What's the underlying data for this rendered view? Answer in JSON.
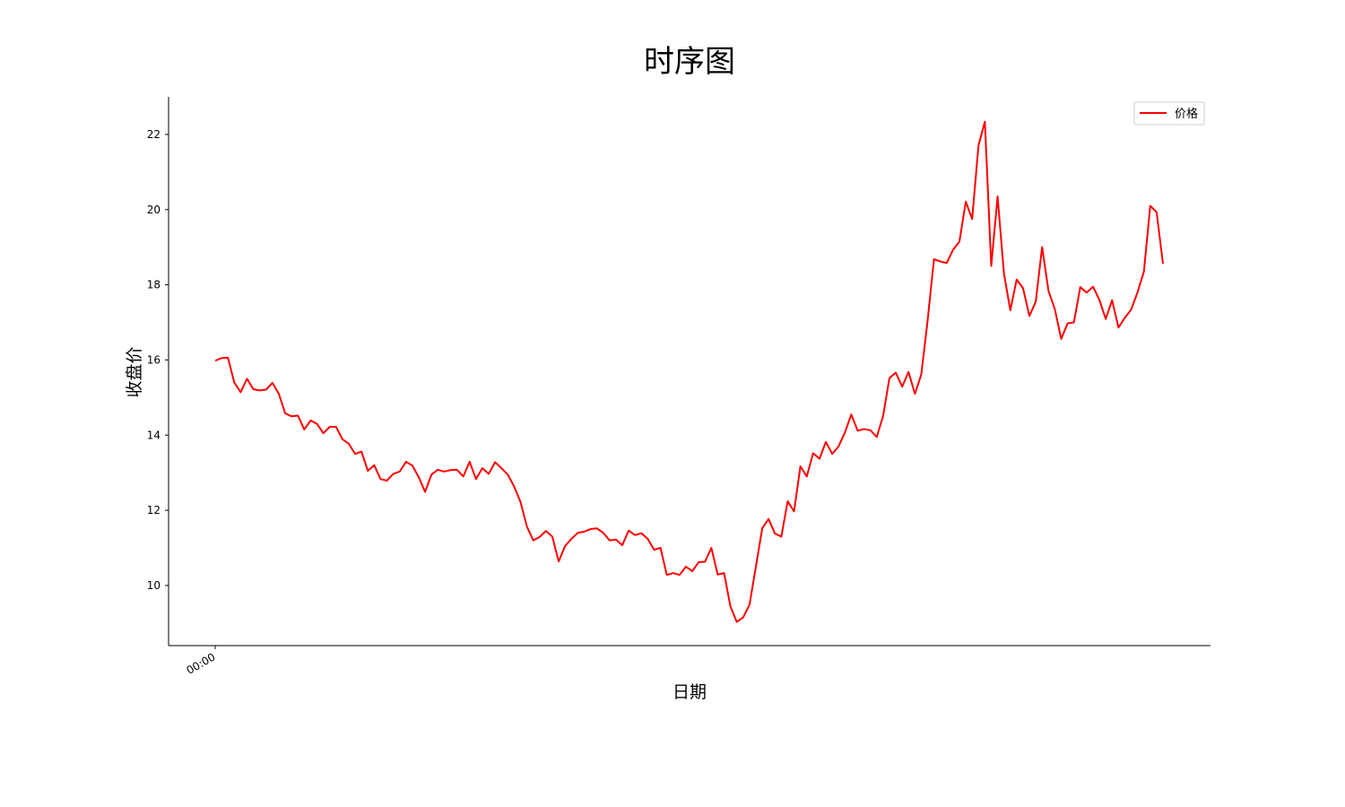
{
  "chart_data": {
    "type": "line",
    "title": "时序图",
    "xlabel": "日期",
    "ylabel": "收盘价",
    "x_tick_labels": [
      "00:00"
    ],
    "yticks": [
      10,
      12,
      14,
      16,
      18,
      20,
      22
    ],
    "ylim": [
      8.4,
      23.0
    ],
    "grid": false,
    "legend_position": "top-right",
    "series": [
      {
        "name": "价格",
        "color": "#ff0000",
        "values": [
          15.98,
          16.05,
          16.06,
          15.4,
          15.14,
          15.5,
          15.22,
          15.19,
          15.21,
          15.39,
          15.1,
          14.58,
          14.5,
          14.52,
          14.15,
          14.39,
          14.3,
          14.05,
          14.22,
          14.22,
          13.89,
          13.77,
          13.5,
          13.56,
          13.05,
          13.2,
          12.83,
          12.79,
          12.97,
          13.03,
          13.29,
          13.19,
          12.88,
          12.49,
          12.95,
          13.08,
          13.03,
          13.07,
          13.08,
          12.9,
          13.29,
          12.83,
          13.12,
          12.97,
          13.28,
          13.12,
          12.95,
          12.63,
          12.22,
          11.57,
          11.2,
          11.29,
          11.45,
          11.3,
          10.64,
          11.05,
          11.24,
          11.4,
          11.43,
          11.5,
          11.52,
          11.4,
          11.2,
          11.22,
          11.07,
          11.46,
          11.34,
          11.39,
          11.24,
          10.95,
          11.0,
          10.28,
          10.33,
          10.28,
          10.5,
          10.38,
          10.62,
          10.63,
          11.0,
          10.29,
          10.33,
          9.44,
          9.03,
          9.15,
          9.49,
          10.5,
          11.52,
          11.77,
          11.38,
          11.3,
          12.24,
          11.97,
          13.17,
          12.9,
          13.52,
          13.37,
          13.82,
          13.5,
          13.7,
          14.07,
          14.55,
          14.12,
          14.16,
          14.13,
          13.95,
          14.51,
          15.52,
          15.66,
          15.29,
          15.68,
          15.1,
          15.61,
          17.05,
          18.68,
          18.62,
          18.58,
          18.93,
          19.15,
          20.21,
          19.75,
          21.71,
          22.34,
          18.5,
          20.35,
          18.3,
          17.32,
          18.14,
          17.91,
          17.17,
          17.55,
          19.0,
          17.84,
          17.35,
          16.56,
          16.97,
          17.0,
          17.94,
          17.79,
          17.95,
          17.6,
          17.09,
          17.59,
          16.86,
          17.12,
          17.34,
          17.8,
          18.35,
          20.1,
          19.93,
          18.56
        ]
      }
    ]
  }
}
